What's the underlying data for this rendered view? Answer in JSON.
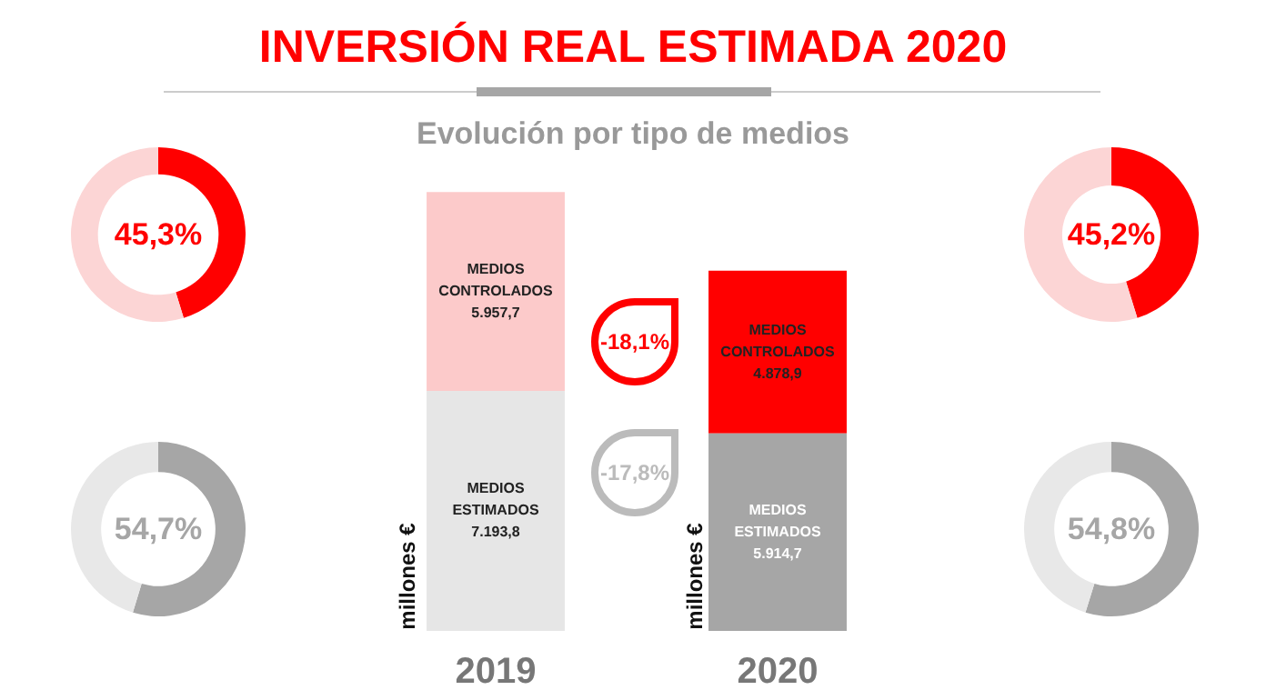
{
  "chart_data": [
    {
      "type": "bar",
      "title": "INVERSIÓN REAL ESTIMADA 2020",
      "subtitle": "Evolución por tipo de medios",
      "ylabel": "millones €",
      "categories": [
        "2019",
        "2020"
      ],
      "stacked": true,
      "legend": false,
      "series": [
        {
          "name": "MEDIOS ESTIMADOS",
          "colors": [
            "#e6e6e6",
            "#a6a6a6"
          ],
          "values": [
            7193.8,
            5914.7
          ],
          "value_labels": [
            "7.193,8",
            "5.914,7"
          ]
        },
        {
          "name": "MEDIOS CONTROLADOS",
          "colors": [
            "#fccaca",
            "#ff0000"
          ],
          "values": [
            5957.7,
            4878.9
          ],
          "value_labels": [
            "5.957,7",
            "4.878,9"
          ]
        }
      ],
      "annotations": [
        "-18,1%",
        "-17,8%"
      ]
    },
    {
      "type": "donut",
      "categories": [
        null,
        null
      ],
      "values": [
        45.3,
        54.7
      ],
      "colors": [
        "#ff0000",
        "#fcd5d5"
      ],
      "annotations": [
        "45,3%"
      ]
    },
    {
      "type": "donut",
      "categories": [
        null,
        null
      ],
      "values": [
        54.7,
        45.3
      ],
      "colors": [
        "#a6a6a6",
        "#e8e8e8"
      ],
      "annotations": [
        "54,7%"
      ]
    },
    {
      "type": "donut",
      "categories": [
        null,
        null
      ],
      "values": [
        45.2,
        54.8
      ],
      "colors": [
        "#ff0000",
        "#fcd5d5"
      ],
      "annotations": [
        "45,2%"
      ]
    },
    {
      "type": "donut",
      "categories": [
        null,
        null
      ],
      "values": [
        54.8,
        45.2
      ],
      "colors": [
        "#a6a6a6",
        "#e8e8e8"
      ],
      "annotations": [
        "54,8%"
      ]
    }
  ]
}
